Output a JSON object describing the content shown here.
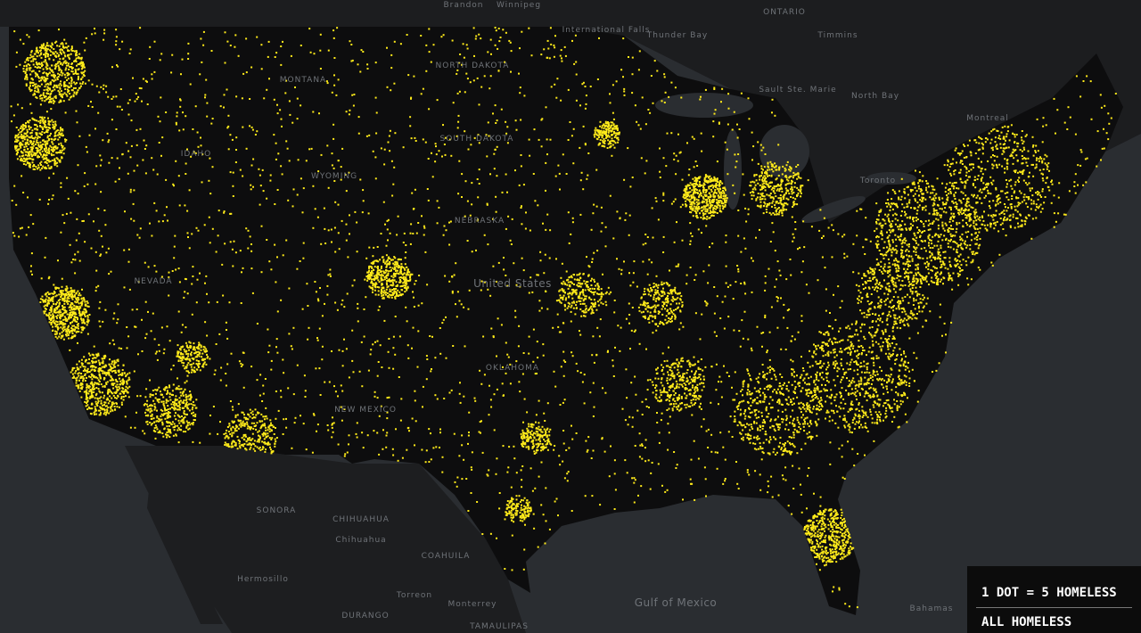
{
  "map": {
    "labels": [
      "Brandon",
      "Winnipeg",
      "ONTARIO",
      "Timmins",
      "Thunder Bay",
      "International Falls",
      "MONTANA",
      "NORTH DAKOTA",
      "SOUTH DAKOTA",
      "IDAHO",
      "WYOMING",
      "NEBRASKA",
      "NEVADA",
      "United States",
      "NEW MEXICO",
      "OKLAHOMA",
      "SONORA",
      "CHIHUAHUA",
      "Hermosillo",
      "Chihuahua",
      "COAHUILA",
      "Torreon",
      "DURANGO",
      "Monterrey",
      "TAMAULIPAS",
      "Gulf of Mexico",
      "Bahamas",
      "North Bay",
      "Montreal",
      "Sault Ste. Marie",
      "Toronto"
    ]
  },
  "legend": {
    "scale": "1 DOT = 5 HOMELESS",
    "layer": "ALL HOMELESS"
  }
}
